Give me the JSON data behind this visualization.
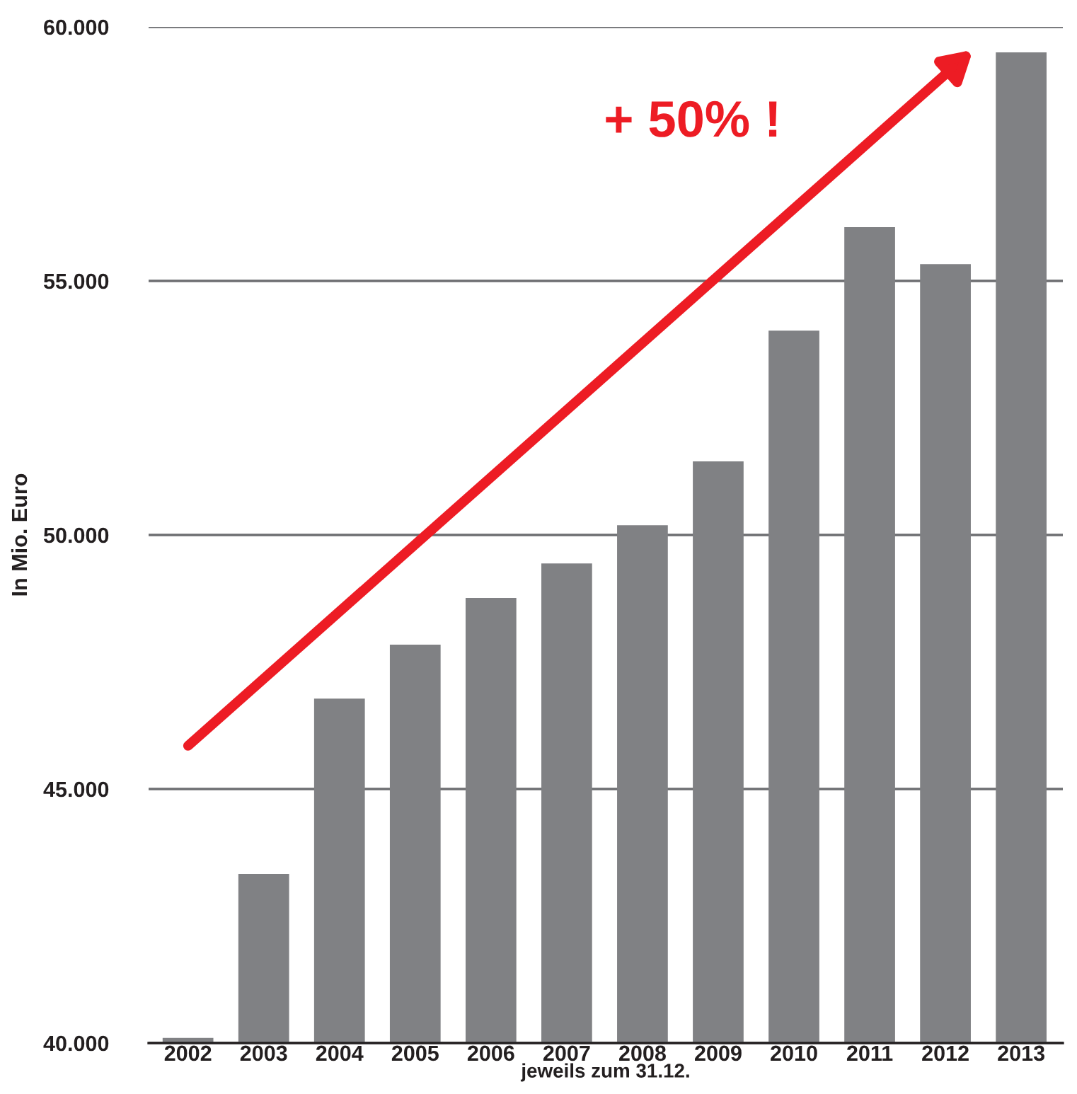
{
  "chart_data": {
    "type": "bar",
    "ylabel": "In Mio. Euro",
    "xlabel": "jeweils zum 31.12.",
    "categories": [
      "2002",
      "2003",
      "2004",
      "2005",
      "2006",
      "2007",
      "2008",
      "2009",
      "2010",
      "2011",
      "2012",
      "2013"
    ],
    "values": [
      40100,
      43330,
      46780,
      47840,
      48760,
      49440,
      50190,
      51450,
      54020,
      56060,
      55330,
      59500
    ],
    "color": "#808184",
    "ylim": [
      40000,
      60000
    ],
    "yticks": [
      {
        "value": 40000,
        "label": "40.000"
      },
      {
        "value": 45000,
        "label": "45.000"
      },
      {
        "value": 50000,
        "label": "50.000"
      },
      {
        "value": 55000,
        "label": "55.000"
      },
      {
        "value": 60000,
        "label": "60.000"
      }
    ],
    "grid": "y",
    "annotations": [
      "+ 50% !"
    ]
  }
}
